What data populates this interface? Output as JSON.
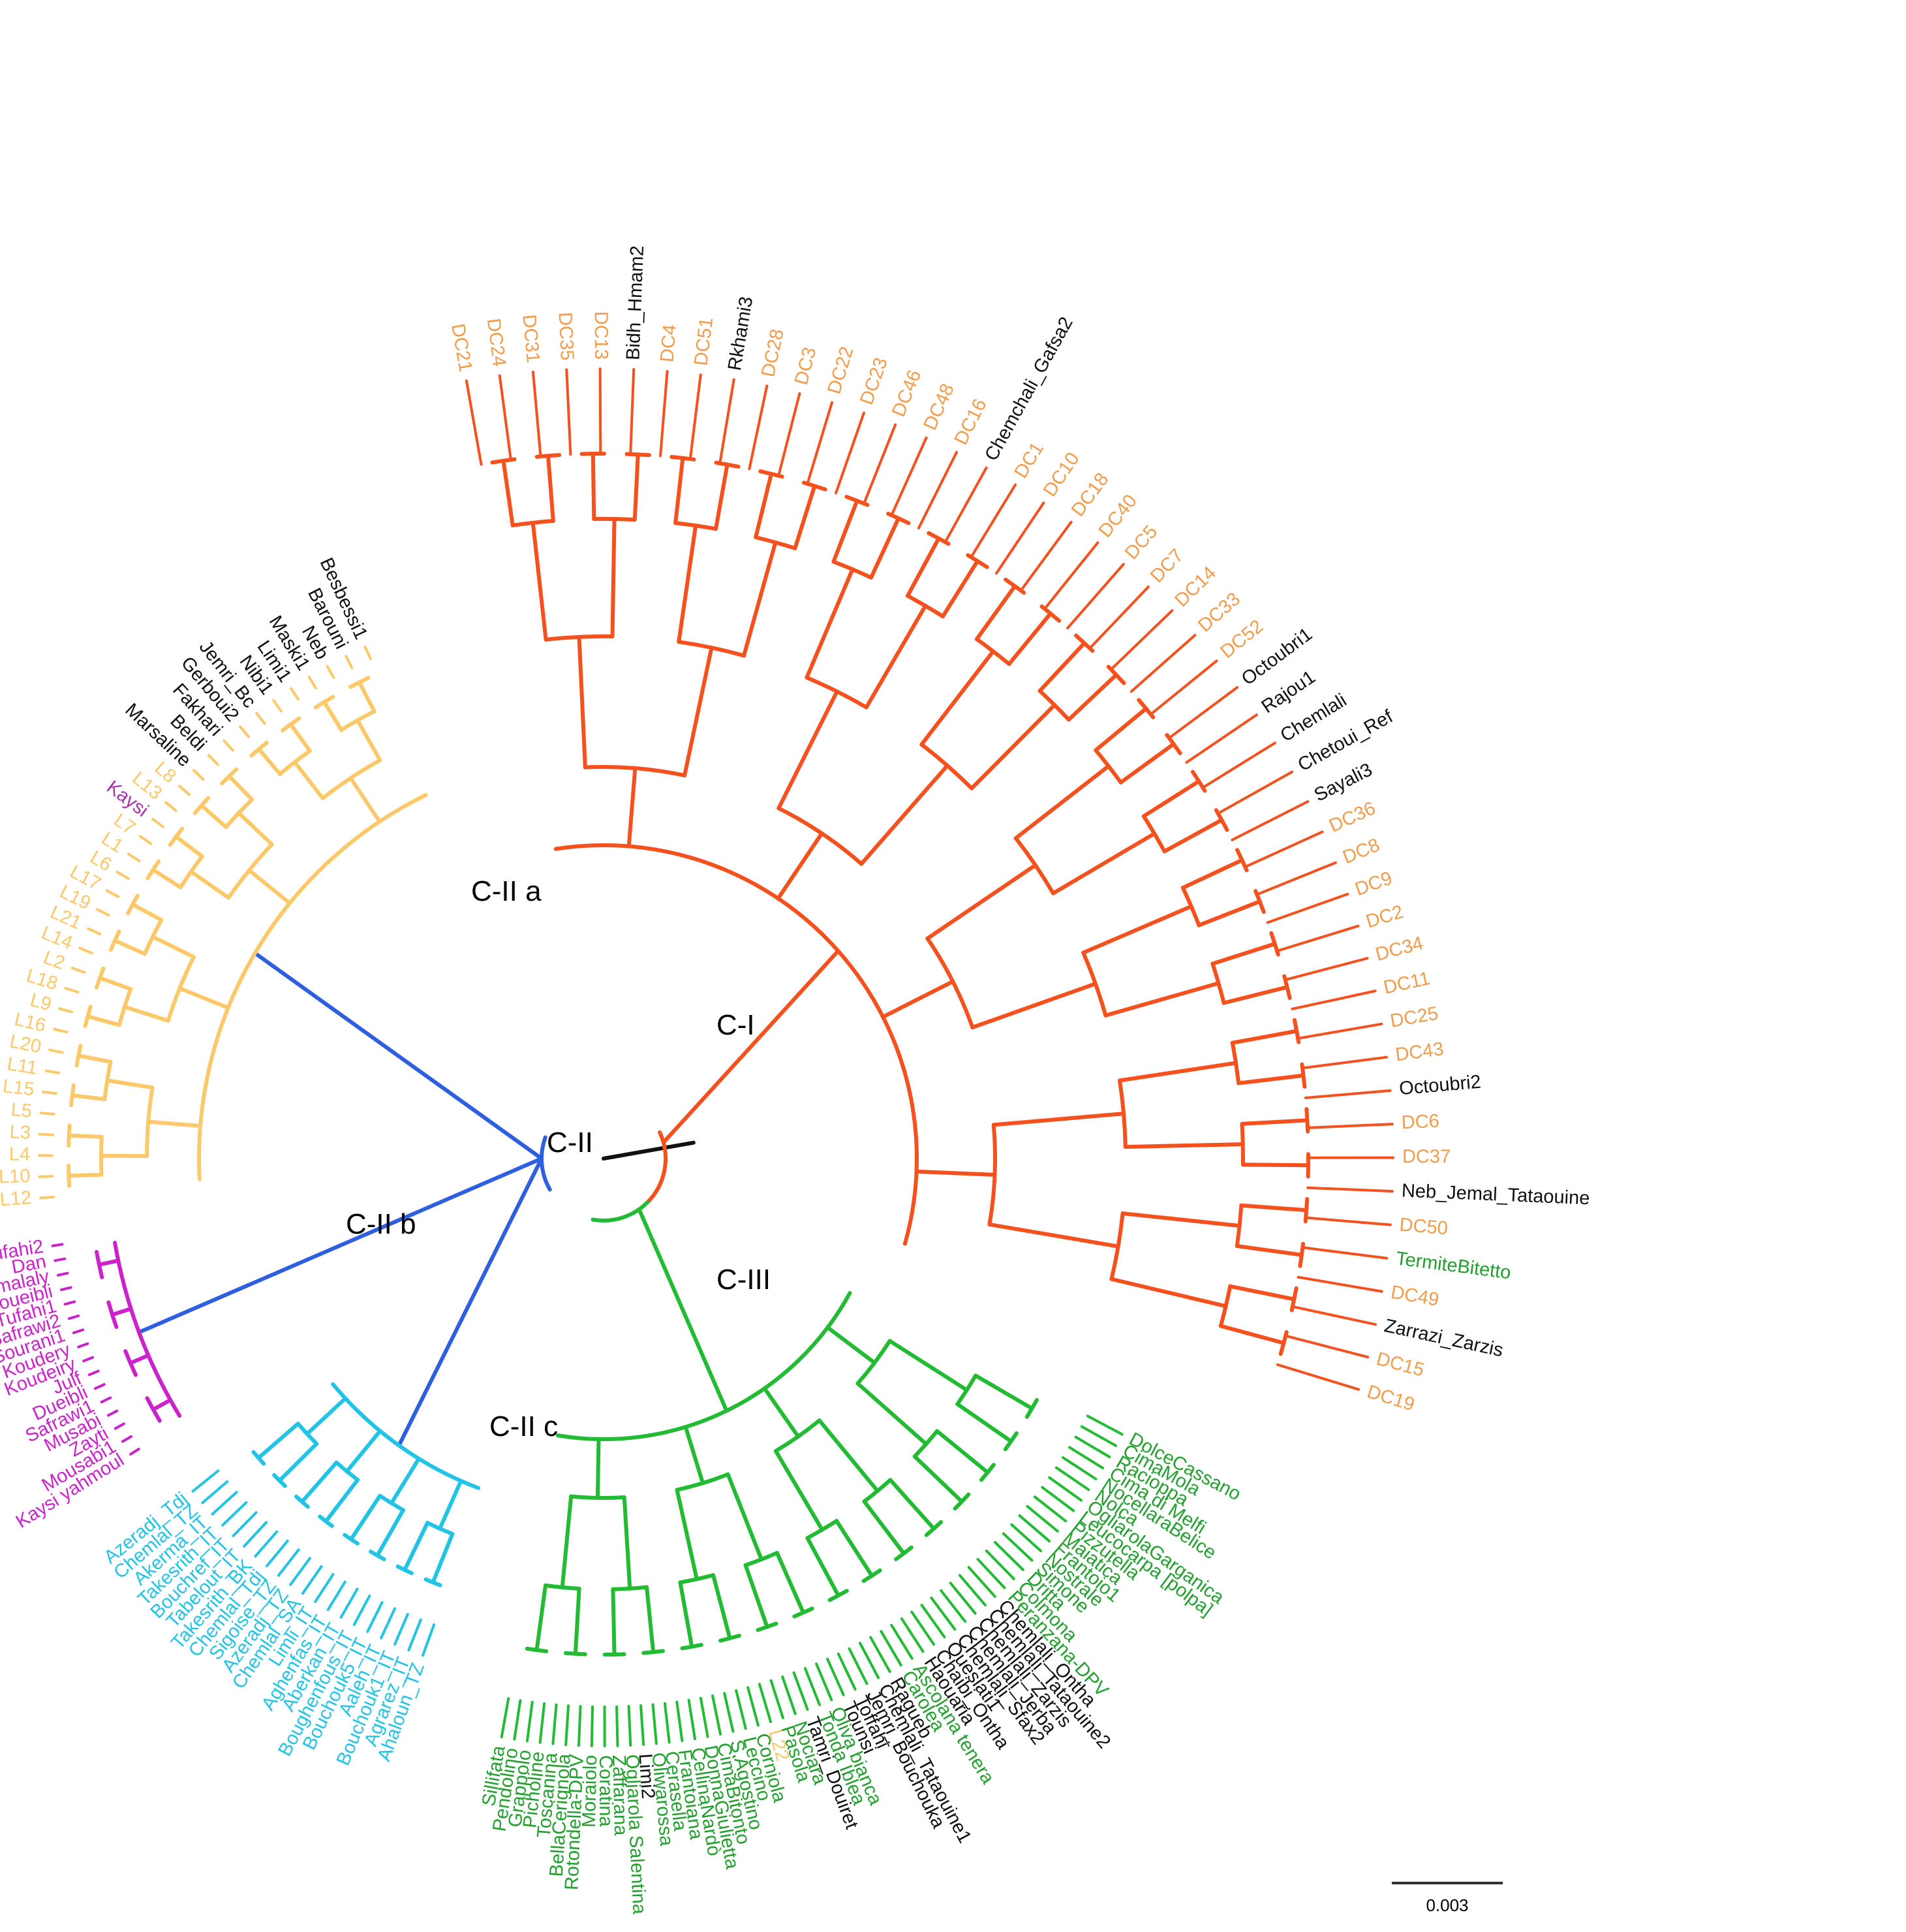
{
  "colors": {
    "c1": "#f4511e",
    "c1_label": "#f39c4b",
    "c2a": "#fbc96a",
    "c2b": "#cc22cc",
    "c2c": "#22c4e6",
    "c2_backbone": "#2e5fe0",
    "c3": "#22bb33",
    "c3_label": "#22a02e",
    "black": "#111111",
    "kaysi": "#aa33aa"
  },
  "clades": {
    "c1": "C-I",
    "c2": "C-II",
    "c2a": "C-II a",
    "c2b": "C-II b",
    "c2c": "C-II c",
    "c3": "C-III"
  },
  "scale_bar": {
    "value": "0.003"
  },
  "groups": {
    "c1": {
      "color": "c1",
      "labels": [
        {
          "t": "DC21",
          "c": "c1_label"
        },
        {
          "t": "DC24",
          "c": "c1_label"
        },
        {
          "t": "DC31",
          "c": "c1_label"
        },
        {
          "t": "DC35",
          "c": "c1_label"
        },
        {
          "t": "DC13",
          "c": "c1_label"
        },
        {
          "t": "Bidh_Hmam2",
          "c": "black"
        },
        {
          "t": "DC4",
          "c": "c1_label"
        },
        {
          "t": "DC51",
          "c": "c1_label"
        },
        {
          "t": "Rkhami3",
          "c": "black"
        },
        {
          "t": "DC28",
          "c": "c1_label"
        },
        {
          "t": "DC3",
          "c": "c1_label"
        },
        {
          "t": "DC22",
          "c": "c1_label"
        },
        {
          "t": "DC23",
          "c": "c1_label"
        },
        {
          "t": "DC46",
          "c": "c1_label"
        },
        {
          "t": "DC48",
          "c": "c1_label"
        },
        {
          "t": "DC16",
          "c": "c1_label"
        },
        {
          "t": "Chemchali_Gafsa2",
          "c": "black"
        },
        {
          "t": "DC1",
          "c": "c1_label"
        },
        {
          "t": "DC10",
          "c": "c1_label"
        },
        {
          "t": "DC18",
          "c": "c1_label"
        },
        {
          "t": "DC40",
          "c": "c1_label"
        },
        {
          "t": "DC5",
          "c": "c1_label"
        },
        {
          "t": "DC7",
          "c": "c1_label"
        },
        {
          "t": "DC14",
          "c": "c1_label"
        },
        {
          "t": "DC33",
          "c": "c1_label"
        },
        {
          "t": "DC52",
          "c": "c1_label"
        },
        {
          "t": "Octoubri1",
          "c": "black"
        },
        {
          "t": "Rajou1",
          "c": "black"
        },
        {
          "t": "Chemlali",
          "c": "black"
        },
        {
          "t": "Chetoui_Ref",
          "c": "black"
        },
        {
          "t": "Sayali3",
          "c": "black"
        },
        {
          "t": "DC36",
          "c": "c1_label"
        },
        {
          "t": "DC8",
          "c": "c1_label"
        },
        {
          "t": "DC9",
          "c": "c1_label"
        },
        {
          "t": "DC2",
          "c": "c1_label"
        },
        {
          "t": "DC34",
          "c": "c1_label"
        },
        {
          "t": "DC11",
          "c": "c1_label"
        },
        {
          "t": "DC25",
          "c": "c1_label"
        },
        {
          "t": "DC43",
          "c": "c1_label"
        },
        {
          "t": "Octoubri2",
          "c": "black"
        },
        {
          "t": "DC6",
          "c": "c1_label"
        },
        {
          "t": "DC37",
          "c": "c1_label"
        },
        {
          "t": "Neb_Jemal_Tataouine",
          "c": "black"
        },
        {
          "t": "DC50",
          "c": "c1_label"
        },
        {
          "t": "TermiteBitetto",
          "c": "c3_label"
        },
        {
          "t": "DC49",
          "c": "c1_label"
        },
        {
          "t": "Zarrazi_Zarzis",
          "c": "black"
        },
        {
          "t": "DC15",
          "c": "c1_label"
        },
        {
          "t": "DC19",
          "c": "c1_label"
        }
      ]
    },
    "c3": {
      "color": "c3",
      "labels": [
        {
          "t": "DolceCassano",
          "c": "c3_label"
        },
        {
          "t": "CimaMola",
          "c": "c3_label"
        },
        {
          "t": "Racioppa",
          "c": "c3_label"
        },
        {
          "t": "Cima di Melfi",
          "c": "c3_label"
        },
        {
          "t": "NocellaraBelice",
          "c": "c3_label"
        },
        {
          "t": "Nolca",
          "c": "c3_label"
        },
        {
          "t": "OgliarolaGarganica",
          "c": "c3_label"
        },
        {
          "t": "Leucocarpa [polpa]",
          "c": "c3_label"
        },
        {
          "t": "Pizzutella",
          "c": "c3_label"
        },
        {
          "t": "Maiatica",
          "c": "c3_label"
        },
        {
          "t": "Frantoio1",
          "c": "c3_label"
        },
        {
          "t": "Nostrale",
          "c": "c3_label"
        },
        {
          "t": "Simone",
          "c": "c3_label"
        },
        {
          "t": "Dritta",
          "c": "c3_label"
        },
        {
          "t": "Colmona",
          "c": "c3_label"
        },
        {
          "t": "Peranzana-DPV",
          "c": "c3_label"
        },
        {
          "t": "Chemlali_Ontha",
          "c": "black"
        },
        {
          "t": "Chemlali_Tataouine2",
          "c": "black"
        },
        {
          "t": "Chemlali_Zarzis",
          "c": "black"
        },
        {
          "t": "Chemlali_Jerba",
          "c": "black"
        },
        {
          "t": "Chemlali_Sfax2",
          "c": "black"
        },
        {
          "t": "Oueslati1",
          "c": "black"
        },
        {
          "t": "Chaibi_Ontha",
          "c": "black"
        },
        {
          "t": "Haouaria",
          "c": "black"
        },
        {
          "t": "Ascolana tenera",
          "c": "c3_label"
        },
        {
          "t": "Carolea",
          "c": "c3_label"
        },
        {
          "t": "Ragueb",
          "c": "black"
        },
        {
          "t": "Chemlali_Tataouine1",
          "c": "black"
        },
        {
          "t": "Jemri_Bouchouka",
          "c": "black"
        },
        {
          "t": "Toffahi",
          "c": "black"
        },
        {
          "t": "Tounsi",
          "c": "black"
        },
        {
          "t": "Oliva bianca",
          "c": "c3_label"
        },
        {
          "t": "Tonda Iblea",
          "c": "c3_label"
        },
        {
          "t": "Tamri_Douiret",
          "c": "black"
        },
        {
          "t": "Nociara",
          "c": "c3_label"
        },
        {
          "t": "Pasola",
          "c": "c3_label"
        },
        {
          "t": "L22",
          "c": "c2a"
        },
        {
          "t": "Corniola",
          "c": "c3_label"
        },
        {
          "t": "Leccino",
          "c": "c3_label"
        },
        {
          "t": "S.Agostino",
          "c": "c3_label"
        },
        {
          "t": "CimaBitonto",
          "c": "c3_label"
        },
        {
          "t": "DonnaGiulietta",
          "c": "c3_label"
        },
        {
          "t": "CellinaNardò",
          "c": "c3_label"
        },
        {
          "t": "Frantoiana",
          "c": "c3_label"
        },
        {
          "t": "Cerasella",
          "c": "c3_label"
        },
        {
          "t": "Oliwarossa",
          "c": "c3_label"
        },
        {
          "t": "Limi2",
          "c": "black"
        },
        {
          "t": "Ogliarola Salentina",
          "c": "c3_label"
        },
        {
          "t": "Zaffarana",
          "c": "c3_label"
        },
        {
          "t": "Coratina",
          "c": "c3_label"
        },
        {
          "t": "Moraiolo",
          "c": "c3_label"
        },
        {
          "t": "Rotondella-DPV",
          "c": "c3_label"
        },
        {
          "t": "BellaCerignola",
          "c": "c3_label"
        },
        {
          "t": "Toscanina",
          "c": "c3_label"
        },
        {
          "t": "Picholine",
          "c": "c3_label"
        },
        {
          "t": "Grappolo",
          "c": "c3_label"
        },
        {
          "t": "Pendolino",
          "c": "c3_label"
        },
        {
          "t": "Sillifata",
          "c": "c3_label"
        }
      ]
    },
    "c2c": {
      "color": "c2c",
      "labels": [
        {
          "t": "Ahaloun_TZ",
          "c": "c2c"
        },
        {
          "t": "Agrarez_IT",
          "c": "c2c"
        },
        {
          "t": "Bouchouk1_IT",
          "c": "c2c"
        },
        {
          "t": "Aaleh_IT",
          "c": "c2c"
        },
        {
          "t": "Bouchouk5_IT",
          "c": "c2c"
        },
        {
          "t": "Boughenfous_IT",
          "c": "c2c"
        },
        {
          "t": "Aberkan_IT",
          "c": "c2c"
        },
        {
          "t": "Aghenfas_IT",
          "c": "c2c"
        },
        {
          "t": "Limli_IT",
          "c": "c2c"
        },
        {
          "t": "Chemlal_SA",
          "c": "c2c"
        },
        {
          "t": "Azeradj_TZ",
          "c": "c2c"
        },
        {
          "t": "Sigoise_TZ",
          "c": "c2c"
        },
        {
          "t": "Chemlal_Tdj",
          "c": "c2c"
        },
        {
          "t": "Takesrith_BK",
          "c": "c2c"
        },
        {
          "t": "Tabelout_IT",
          "c": "c2c"
        },
        {
          "t": "Bouchref_IT",
          "c": "c2c"
        },
        {
          "t": "Takesrith_IT",
          "c": "c2c"
        },
        {
          "t": "Akerma_IT",
          "c": "c2c"
        },
        {
          "t": "Chemlal_TZ",
          "c": "c2c"
        },
        {
          "t": "Azeradj_Tdj",
          "c": "c2c"
        }
      ]
    },
    "c2b": {
      "color": "c2b",
      "labels": [
        {
          "t": "Kaysi yahmoul",
          "c": "c2b"
        },
        {
          "t": "Mousabi1",
          "c": "c2b"
        },
        {
          "t": "Zayti",
          "c": "c2b"
        },
        {
          "t": "Musabi",
          "c": "c2b"
        },
        {
          "t": "Safrawi1",
          "c": "c2b"
        },
        {
          "t": "Dueibli",
          "c": "c2b"
        },
        {
          "t": "Julf",
          "c": "c2b"
        },
        {
          "t": "Koudeiry",
          "c": "c2b"
        },
        {
          "t": "Koudery",
          "c": "c2b"
        },
        {
          "t": "Sourani1",
          "c": "c2b"
        },
        {
          "t": "Safrawi2",
          "c": "c2b"
        },
        {
          "t": "Tufahi1",
          "c": "c2b"
        },
        {
          "t": "Doueibli",
          "c": "c2b"
        },
        {
          "t": "Drmalaly",
          "c": "c2b"
        },
        {
          "t": "Dan",
          "c": "c2b"
        },
        {
          "t": "Tufahi2",
          "c": "c2b"
        }
      ]
    },
    "c2a": {
      "color": "c2a",
      "labels": [
        {
          "t": "L12",
          "c": "c2a"
        },
        {
          "t": "L10",
          "c": "c2a"
        },
        {
          "t": "L4",
          "c": "c2a"
        },
        {
          "t": "L3",
          "c": "c2a"
        },
        {
          "t": "L5",
          "c": "c2a"
        },
        {
          "t": "L15",
          "c": "c2a"
        },
        {
          "t": "L11",
          "c": "c2a"
        },
        {
          "t": "L20",
          "c": "c2a"
        },
        {
          "t": "L16",
          "c": "c2a"
        },
        {
          "t": "L9",
          "c": "c2a"
        },
        {
          "t": "L18",
          "c": "c2a"
        },
        {
          "t": "L2",
          "c": "c2a"
        },
        {
          "t": "L14",
          "c": "c2a"
        },
        {
          "t": "L21",
          "c": "c2a"
        },
        {
          "t": "L19",
          "c": "c2a"
        },
        {
          "t": "L17",
          "c": "c2a"
        },
        {
          "t": "L6",
          "c": "c2a"
        },
        {
          "t": "L1",
          "c": "c2a"
        },
        {
          "t": "L7",
          "c": "c2a"
        },
        {
          "t": "Kaysi",
          "c": "kaysi"
        },
        {
          "t": "L13",
          "c": "c2a"
        },
        {
          "t": "L8",
          "c": "c2a"
        },
        {
          "t": "Marsaline",
          "c": "black"
        },
        {
          "t": "Beldi",
          "c": "black"
        },
        {
          "t": "Fakhari",
          "c": "black"
        },
        {
          "t": "Gerboui2",
          "c": "black"
        },
        {
          "t": "Jemri_Bc",
          "c": "black"
        },
        {
          "t": "Nibi1",
          "c": "black"
        },
        {
          "t": "Limi1",
          "c": "black"
        },
        {
          "t": "Maski1",
          "c": "black"
        },
        {
          "t": "Neb",
          "c": "black"
        },
        {
          "t": "Barouni",
          "c": "black"
        },
        {
          "t": "Besbessi1",
          "c": "black"
        }
      ]
    }
  }
}
